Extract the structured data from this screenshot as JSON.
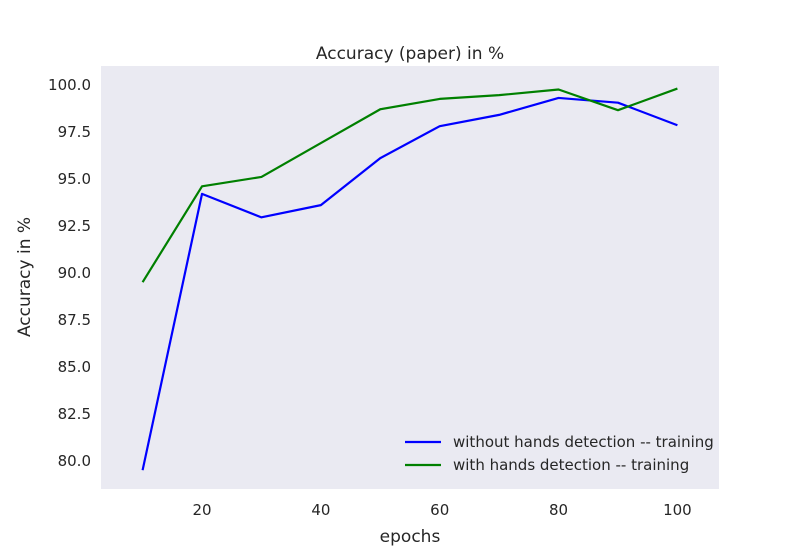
{
  "chart_data": {
    "type": "line",
    "title": "Accuracy (paper)  in %",
    "xlabel": "epochs",
    "ylabel": "Accuracy in %",
    "x": [
      10,
      20,
      30,
      40,
      50,
      60,
      70,
      80,
      90,
      100
    ],
    "xlim": [
      3,
      107
    ],
    "ylim": [
      78.5,
      101.0
    ],
    "xticks": [
      20,
      40,
      60,
      80,
      100
    ],
    "yticks": [
      80.0,
      82.5,
      85.0,
      87.5,
      90.0,
      92.5,
      95.0,
      97.5,
      100.0
    ],
    "grid": false,
    "legend_position": "lower-right",
    "background_color": "#eaeaf2",
    "series": [
      {
        "name": "without hands detection -- training",
        "color": "#0000ff",
        "values": [
          79.5,
          94.2,
          92.95,
          93.6,
          96.1,
          97.8,
          98.4,
          99.3,
          99.05,
          97.85
        ]
      },
      {
        "name": "with hands detection -- training",
        "color": "#008000",
        "values": [
          89.5,
          94.6,
          95.1,
          96.9,
          98.7,
          99.25,
          99.45,
          99.75,
          98.65,
          99.8
        ]
      }
    ]
  }
}
